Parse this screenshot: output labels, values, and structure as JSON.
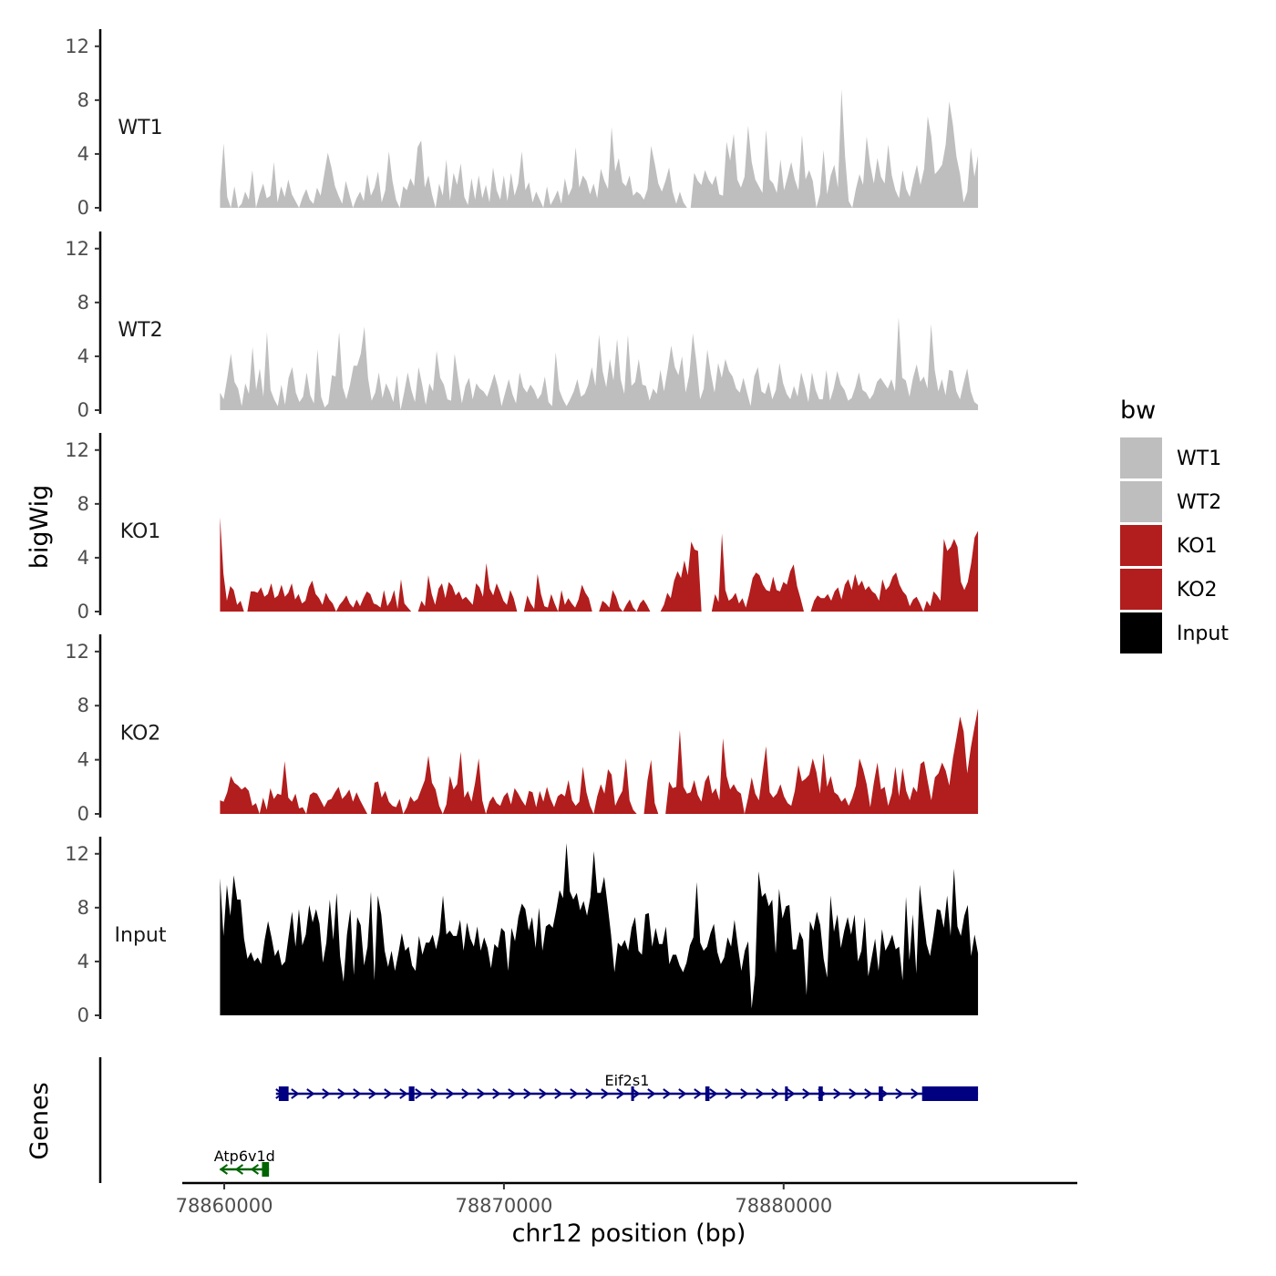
{
  "chart_data": {
    "type": "area",
    "y_axis_title": "bigWig",
    "genes_axis_title": "Genes",
    "x_axis_title": "chr12 position (bp)",
    "x_ticks": [
      78860000,
      78870000,
      78880000
    ],
    "x_tick_labels": [
      "78860000",
      "78870000",
      "78880000"
    ],
    "xlim": [
      78858500,
      78890500
    ],
    "y_ticks": [
      0,
      4,
      8,
      12
    ],
    "y_tick_labels": [
      "0",
      "4",
      "8",
      "12"
    ],
    "ylim": [
      0,
      13
    ],
    "x_start": 78859850,
    "x_end": 78886950,
    "series": [
      {
        "name": "WT1",
        "label": "WT1",
        "color": "#bebebe",
        "values": [
          1.2,
          4.8,
          0.8,
          0,
          1.6,
          0,
          0.3,
          1.2,
          0.6,
          2.8,
          0,
          1.0,
          1.8,
          0.7,
          0.9,
          3.4,
          0.4,
          1.6,
          0.8,
          2.1,
          1.0,
          0.5,
          0,
          0.8,
          1.4,
          0.6,
          0.3,
          1.5,
          0.9,
          2.5,
          4.1,
          3.0,
          1.6,
          0.9,
          0.3,
          2.0,
          1.0,
          0,
          0.7,
          1.2,
          0.5,
          2.5,
          0.9,
          1.5,
          2.7,
          0.4,
          1.3,
          4.2,
          2.0,
          0.6,
          0,
          1.6,
          1.3,
          2.2,
          1.6,
          4.5,
          5.0,
          1.5,
          2.4,
          1.0,
          0,
          1.8,
          0.9,
          3.6,
          0.5,
          2.6,
          1.7,
          3.3,
          0.8,
          0.2,
          2.2,
          0.6,
          2.4,
          0.7,
          1.7,
          0.4,
          3.0,
          1.3,
          0.6,
          2.4,
          0.5,
          2.6,
          0.9,
          1.8,
          4.2,
          1.3,
          1.9,
          0.4,
          1.2,
          0.6,
          0,
          1.6,
          0.2,
          0.7,
          1.3,
          0.3,
          2.2,
          0.9,
          1.5,
          4.5,
          1.5,
          2.4,
          2.0,
          1.0,
          1.8,
          0.7,
          2.9,
          2.0,
          1.4,
          6.0,
          2.7,
          3.7,
          1.9,
          1.6,
          2.4,
          0.9,
          1.2,
          1.0,
          0.6,
          1.4,
          4.6,
          3.3,
          1.8,
          1.2,
          2.0,
          3.0,
          1.2,
          0.3,
          1.2,
          0.4,
          0,
          0,
          2.6,
          2.0,
          1.7,
          2.8,
          2.1,
          1.7,
          2.4,
          1.0,
          0.9,
          4.9,
          3.5,
          5.5,
          2.1,
          1.5,
          2.3,
          6.1,
          3.4,
          2.1,
          1.6,
          1.1,
          5.8,
          2.1,
          1.8,
          1.1,
          3.6,
          1.3,
          2.3,
          3.4,
          2.1,
          1.3,
          5.4,
          2.1,
          2.8,
          2.0,
          0,
          1.0,
          4.3,
          1.0,
          2.4,
          3.2,
          1.5,
          8.8,
          3.8,
          0.5,
          0,
          1.4,
          2.5,
          1.7,
          5.3,
          3.2,
          1.8,
          3.7,
          2.3,
          1.8,
          4.7,
          2.4,
          1.3,
          0.7,
          2.8,
          1.4,
          0.8,
          2.1,
          3.2,
          1.7,
          2.9,
          6.8,
          5.3,
          2.5,
          2.8,
          3.2,
          4.7,
          7.9,
          6.2,
          3.8,
          2.5,
          0.4,
          1.2,
          4.5,
          2.3,
          3.9
        ]
      },
      {
        "name": "WT2",
        "label": "WT2",
        "color": "#bebebe",
        "values": [
          1.3,
          0.8,
          2.4,
          4.2,
          2.1,
          1.6,
          0.3,
          2.0,
          1.2,
          4.7,
          1.5,
          3.1,
          1.0,
          5.8,
          1.5,
          0.8,
          0.3,
          1.9,
          0.4,
          2.4,
          3.2,
          1.3,
          0.6,
          1.0,
          2.8,
          1.1,
          0.5,
          4.5,
          1.0,
          0.2,
          0.5,
          2.6,
          2.5,
          5.8,
          1.7,
          0.8,
          1.9,
          3.3,
          3.3,
          4.2,
          6.2,
          2.4,
          0.7,
          1.3,
          2.8,
          0.9,
          2.0,
          1.4,
          0.6,
          2.6,
          0,
          1.3,
          2.8,
          1.5,
          0.6,
          3.2,
          1.9,
          0.4,
          2.0,
          1.4,
          4.4,
          2.4,
          1.9,
          0.8,
          0.7,
          4.2,
          2.3,
          0.5,
          1.8,
          2.4,
          0.8,
          2.0,
          1.6,
          1.4,
          1.0,
          1.8,
          2.7,
          1.7,
          0.3,
          1.3,
          2.3,
          1.2,
          0.5,
          2.8,
          1.7,
          1.3,
          1.9,
          1.5,
          0.8,
          1.2,
          2.5,
          0.6,
          0.3,
          4.3,
          1.5,
          0.8,
          0.3,
          0.8,
          1.4,
          2.3,
          1.0,
          1.2,
          1.9,
          3.2,
          1.8,
          5.6,
          2.9,
          1.7,
          3.8,
          2.2,
          5.3,
          2.3,
          1.2,
          5.6,
          1.8,
          2.1,
          3.8,
          1.9,
          1.8,
          0.7,
          1.6,
          1.2,
          3.0,
          1.4,
          3.0,
          4.8,
          3.2,
          2.6,
          4.0,
          1.3,
          2.6,
          5.7,
          3.5,
          0.8,
          1.6,
          4.5,
          2.7,
          1.3,
          3.5,
          2.4,
          3.8,
          2.9,
          2.5,
          1.6,
          1.3,
          2.4,
          1.3,
          0.3,
          2.5,
          3.2,
          1.4,
          1.2,
          2.1,
          0.8,
          1.5,
          3.5,
          2.0,
          1.2,
          0.8,
          1.8,
          1.0,
          2.8,
          1.8,
          0.6,
          2.8,
          1.5,
          0.8,
          0.8,
          3.0,
          0.7,
          1.6,
          2.9,
          1.9,
          1.5,
          0.7,
          0.9,
          1.7,
          2.8,
          1.5,
          1.3,
          0.8,
          1.2,
          2.1,
          2.4,
          2.0,
          1.6,
          2.3,
          1.4,
          6.9,
          2.4,
          2.2,
          1.0,
          2.4,
          3.4,
          2.1,
          2.5,
          1.6,
          6.4,
          3.0,
          1.4,
          2.3,
          1.1,
          3.0,
          2.9,
          1.4,
          0.8,
          2.0,
          3.1,
          1.4,
          0.6,
          0.4
        ]
      },
      {
        "name": "KO1",
        "label": "KO1",
        "color": "#b21d1d",
        "values": [
          7.0,
          2.8,
          0.8,
          1.9,
          1.6,
          0.5,
          0.8,
          0,
          0,
          1.5,
          1.5,
          1.4,
          1.8,
          1.1,
          1.3,
          2.1,
          1.0,
          1.2,
          2.0,
          1.1,
          1.4,
          2.1,
          0.9,
          1.3,
          0.6,
          0.8,
          1.8,
          2.3,
          1.3,
          1.0,
          0.5,
          1.4,
          0.9,
          0.6,
          0,
          0.5,
          0.8,
          1.2,
          0.6,
          0.3,
          0.9,
          0.4,
          1.0,
          1.5,
          1.3,
          0.6,
          0.5,
          0.3,
          1.6,
          0.4,
          0.8,
          1.6,
          0.2,
          2.4,
          0.6,
          0.3,
          0,
          0,
          0,
          0.8,
          0.4,
          2.7,
          1.3,
          0.5,
          1.7,
          2.1,
          1.0,
          2.2,
          1.9,
          1.2,
          1.5,
          0.9,
          1.1,
          0.8,
          0.5,
          2.1,
          1.8,
          1.1,
          3.6,
          1.7,
          1.2,
          2.1,
          1.5,
          0.8,
          0.5,
          1.6,
          1.0,
          0,
          0,
          0,
          1.2,
          0.6,
          0.2,
          2.8,
          1.3,
          0.4,
          0.3,
          1.3,
          0.6,
          0,
          1.6,
          0.5,
          1.0,
          0.6,
          0.3,
          0.9,
          2.0,
          1.4,
          1.0,
          0,
          0,
          0,
          0.8,
          0.6,
          0.3,
          1.6,
          1.1,
          0.3,
          0,
          0.5,
          0.9,
          0.3,
          0,
          0.6,
          0.9,
          0.5,
          0,
          0,
          0,
          0,
          0.5,
          1.4,
          1.0,
          2.3,
          3.0,
          2.5,
          3.8,
          2.7,
          5.2,
          4.6,
          4.5,
          0,
          0,
          0,
          0,
          1.3,
          0.7,
          5.8,
          1.6,
          0.8,
          1.0,
          1.4,
          0.6,
          1.0,
          0.3,
          1.3,
          2.5,
          2.9,
          2.7,
          2.0,
          1.6,
          1.5,
          2.6,
          1.6,
          1.5,
          2.2,
          2.0,
          3.0,
          3.5,
          1.9,
          1.0,
          0,
          0,
          0,
          0.8,
          1.2,
          1.0,
          1.0,
          1.3,
          0.8,
          1.5,
          1.8,
          0.9,
          2.0,
          2.4,
          1.6,
          2.8,
          1.9,
          2.3,
          1.6,
          1.9,
          1.5,
          1.3,
          0.8,
          2.4,
          1.6,
          1.9,
          2.6,
          2.9,
          2.0,
          1.5,
          1.2,
          0.4,
          0.9,
          1.1,
          0.6,
          0,
          0.8,
          0.4,
          1.5,
          1.2,
          0.8,
          5.4,
          4.5,
          4.8,
          5.4,
          4.8,
          2.2,
          1.6,
          2.2,
          3.6,
          5.5,
          6.0
        ]
      },
      {
        "name": "KO2",
        "label": "KO2",
        "color": "#b21d1d",
        "values": [
          1.0,
          0.9,
          1.6,
          2.8,
          2.3,
          2.1,
          1.8,
          2.0,
          1.7,
          0.6,
          0.8,
          0,
          1.2,
          0.3,
          1.9,
          1.1,
          1.5,
          1.4,
          3.9,
          1.2,
          0.9,
          1.5,
          0.4,
          0.5,
          0,
          1.4,
          1.6,
          1.5,
          1.0,
          0.5,
          1.0,
          1.1,
          1.6,
          2.0,
          1.1,
          1.4,
          1.8,
          0.9,
          1.6,
          1.0,
          0.5,
          0,
          0,
          2.3,
          2.4,
          1.2,
          1.7,
          0.9,
          0.6,
          0.5,
          1.1,
          0,
          0.5,
          1.3,
          0.9,
          1.1,
          1.8,
          2.5,
          4.3,
          2.3,
          1.8,
          0.6,
          0,
          0.7,
          2.8,
          1.8,
          2.2,
          4.6,
          1.2,
          1.7,
          0.9,
          2.3,
          4.1,
          1.0,
          0,
          0.9,
          1.3,
          0.8,
          0.6,
          1.3,
          1.6,
          0.7,
          1.9,
          1.5,
          1.0,
          0.6,
          1.7,
          1.6,
          0.5,
          1.7,
          0.9,
          2.0,
          1.1,
          0.5,
          1.3,
          1.5,
          1.3,
          2.5,
          1.0,
          0.6,
          0.9,
          3.5,
          1.6,
          0.6,
          0,
          1.3,
          2.2,
          1.5,
          3.3,
          2.9,
          0.6,
          1.2,
          1.7,
          4.1,
          1.0,
          0.3,
          0,
          0,
          0,
          2.5,
          4.0,
          0.8,
          0,
          0,
          0,
          2.4,
          1.9,
          2.0,
          6.2,
          2.0,
          1.5,
          1.6,
          2.5,
          1.4,
          0.9,
          2.4,
          2.9,
          1.5,
          1.9,
          1.0,
          5.6,
          2.8,
          1.8,
          2.2,
          1.7,
          1.5,
          0,
          1.2,
          2.7,
          1.5,
          1.0,
          3.0,
          5.0,
          1.6,
          1.2,
          1.5,
          2.2,
          1.3,
          0.8,
          0.6,
          1.7,
          3.6,
          2.4,
          2.6,
          2.9,
          4.1,
          3.1,
          1.5,
          4.5,
          2.0,
          2.8,
          1.6,
          1.4,
          0.9,
          1.2,
          0.6,
          1.2,
          2.1,
          4.1,
          3.3,
          2.2,
          0.5,
          2.3,
          3.8,
          1.8,
          2.0,
          0.6,
          1.5,
          3.5,
          1.3,
          3.4,
          1.7,
          1.0,
          2.0,
          1.6,
          3.7,
          3.9,
          2.4,
          1.0,
          2.7,
          3.0,
          3.8,
          3.2,
          2.1,
          4.1,
          5.6,
          7.2,
          6.1,
          3.0,
          4.9,
          6.4,
          7.8
        ]
      },
      {
        "name": "Input",
        "label": "Input",
        "color": "#000000",
        "values": [
          10.2,
          5.9,
          9.7,
          7.4,
          10.4,
          8.6,
          8.6,
          5.7,
          4.2,
          4.7,
          4.0,
          4.3,
          3.8,
          5.6,
          7.0,
          5.8,
          4.4,
          4.9,
          3.7,
          4.0,
          5.9,
          7.7,
          5.1,
          7.9,
          5.2,
          6.0,
          8.2,
          6.9,
          7.9,
          6.8,
          3.9,
          5.4,
          8.6,
          5.6,
          9.1,
          4.4,
          2.5,
          6.0,
          7.9,
          3.0,
          7.3,
          6.7,
          3.7,
          5.1,
          9.2,
          2.6,
          8.9,
          7.5,
          4.8,
          3.6,
          4.8,
          3.3,
          4.6,
          6.1,
          4.8,
          5.1,
          3.7,
          3.3,
          5.9,
          4.5,
          5.4,
          5.4,
          6.0,
          4.9,
          6.1,
          8.9,
          6.0,
          6.3,
          5.9,
          5.9,
          7.1,
          4.8,
          6.9,
          5.7,
          5.1,
          6.6,
          4.8,
          5.8,
          5.0,
          3.5,
          5.3,
          5.0,
          6.5,
          6.2,
          3.3,
          6.5,
          5.5,
          7.3,
          8.3,
          7.9,
          6.3,
          7.3,
          5.0,
          8.0,
          4.8,
          6.6,
          6.8,
          6.5,
          7.8,
          9.3,
          8.7,
          12.8,
          9.2,
          8.6,
          9.1,
          7.8,
          8.5,
          7.4,
          8.8,
          12.2,
          9.1,
          9.1,
          10.3,
          8.2,
          6.0,
          3.2,
          5.4,
          5.1,
          5.6,
          4.8,
          6.5,
          7.3,
          4.8,
          4.5,
          7.5,
          7.6,
          5.1,
          6.5,
          5.3,
          5.3,
          6.6,
          3.8,
          4.5,
          4.5,
          3.7,
          3.2,
          3.9,
          5.2,
          5.8,
          9.9,
          5.4,
          4.8,
          5.1,
          6.1,
          6.8,
          4.7,
          3.8,
          4.3,
          5.8,
          5.1,
          7.1,
          5.1,
          3.3,
          4.8,
          5.5,
          0.5,
          3.0,
          10.7,
          8.8,
          9.1,
          8.1,
          8.6,
          4.6,
          9.4,
          7.2,
          8.1,
          8.2,
          4.9,
          4.9,
          6.2,
          5.6,
          1.5,
          7.0,
          6.3,
          7.7,
          6.7,
          4.2,
          2.8,
          8.9,
          6.2,
          7.5,
          5.0,
          6.3,
          7.3,
          6.0,
          7.5,
          4.0,
          4.8,
          7.3,
          2.9,
          4.3,
          5.7,
          3.3,
          6.4,
          4.8,
          5.3,
          6.0,
          4.9,
          5.1,
          2.6,
          8.8,
          4.1,
          7.5,
          3.1,
          9.7,
          7.4,
          5.3,
          4.4,
          6.0,
          7.9,
          7.8,
          6.5,
          8.9,
          5.9,
          10.9,
          6.6,
          5.9,
          7.4,
          8.2,
          4.4,
          6.0,
          4.6
        ]
      }
    ],
    "genes": [
      {
        "name": "Eif2s1",
        "start": 78861850,
        "end": 78886950,
        "strand": "+",
        "color": "#000080",
        "exons": [
          [
            78861950,
            78862300
          ],
          [
            78866600,
            78866800
          ],
          [
            78874550,
            78874650
          ],
          [
            78877200,
            78877350
          ],
          [
            78880050,
            78880150
          ],
          [
            78881250,
            78881400
          ],
          [
            78883400,
            78883550
          ],
          [
            78884950,
            78886950
          ]
        ]
      },
      {
        "name": "Atp6v1d",
        "start": 78859850,
        "end": 78861600,
        "strand": "-",
        "color": "#006400",
        "exons": [
          [
            78861350,
            78861600
          ]
        ]
      }
    ]
  },
  "legend": {
    "title": "bw",
    "items": [
      {
        "label": "WT1",
        "color": "#bebebe"
      },
      {
        "label": "WT2",
        "color": "#bebebe"
      },
      {
        "label": "KO1",
        "color": "#b21d1d"
      },
      {
        "label": "KO2",
        "color": "#b21d1d"
      },
      {
        "label": "Input",
        "color": "#000000"
      }
    ]
  }
}
